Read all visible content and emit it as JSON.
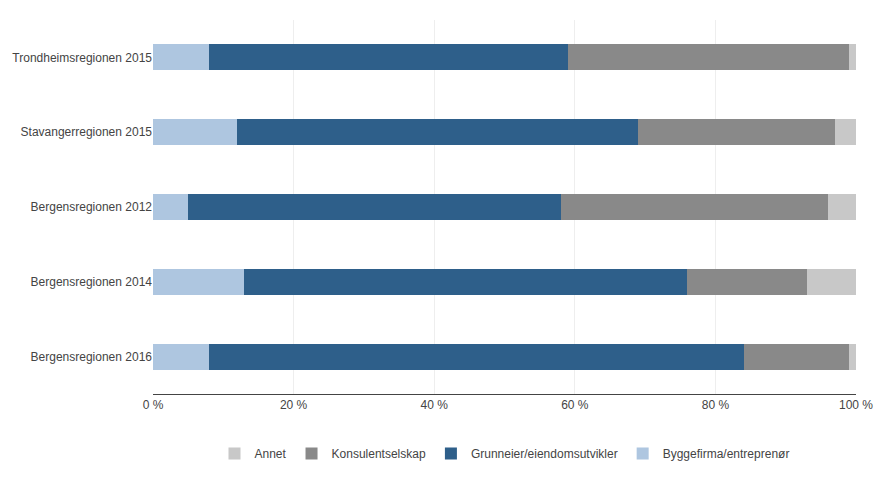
{
  "chart_data": {
    "type": "bar",
    "orientation": "horizontal",
    "stacked": true,
    "categories": [
      "Trondheimsregionen 2015",
      "Stavangerregionen 2015",
      "Bergensregionen 2012",
      "Bergensregionen 2014",
      "Bergensregionen 2016"
    ],
    "series": [
      {
        "name": "Byggefirma/entreprenør",
        "color": "#aec6e0",
        "values": [
          8,
          12,
          5,
          13,
          8
        ]
      },
      {
        "name": "Grunneier/eiendomsutvikler",
        "color": "#2e5f8a",
        "values": [
          51,
          57,
          53,
          63,
          76
        ]
      },
      {
        "name": "Konsulentselskap",
        "color": "#898989",
        "values": [
          40,
          28,
          38,
          17,
          15
        ]
      },
      {
        "name": "Annet",
        "color": "#c8c8c8",
        "values": [
          1,
          3,
          4,
          7,
          1
        ]
      }
    ],
    "xlim": [
      0,
      100
    ],
    "xticks": [
      {
        "value": 0,
        "label": "0 %"
      },
      {
        "value": 20,
        "label": "20 %"
      },
      {
        "value": 40,
        "label": "40 %"
      },
      {
        "value": 60,
        "label": "60 %"
      },
      {
        "value": 80,
        "label": "80 %"
      },
      {
        "value": 100,
        "label": "100 %"
      }
    ],
    "grid": "x",
    "legend": "bottom"
  }
}
